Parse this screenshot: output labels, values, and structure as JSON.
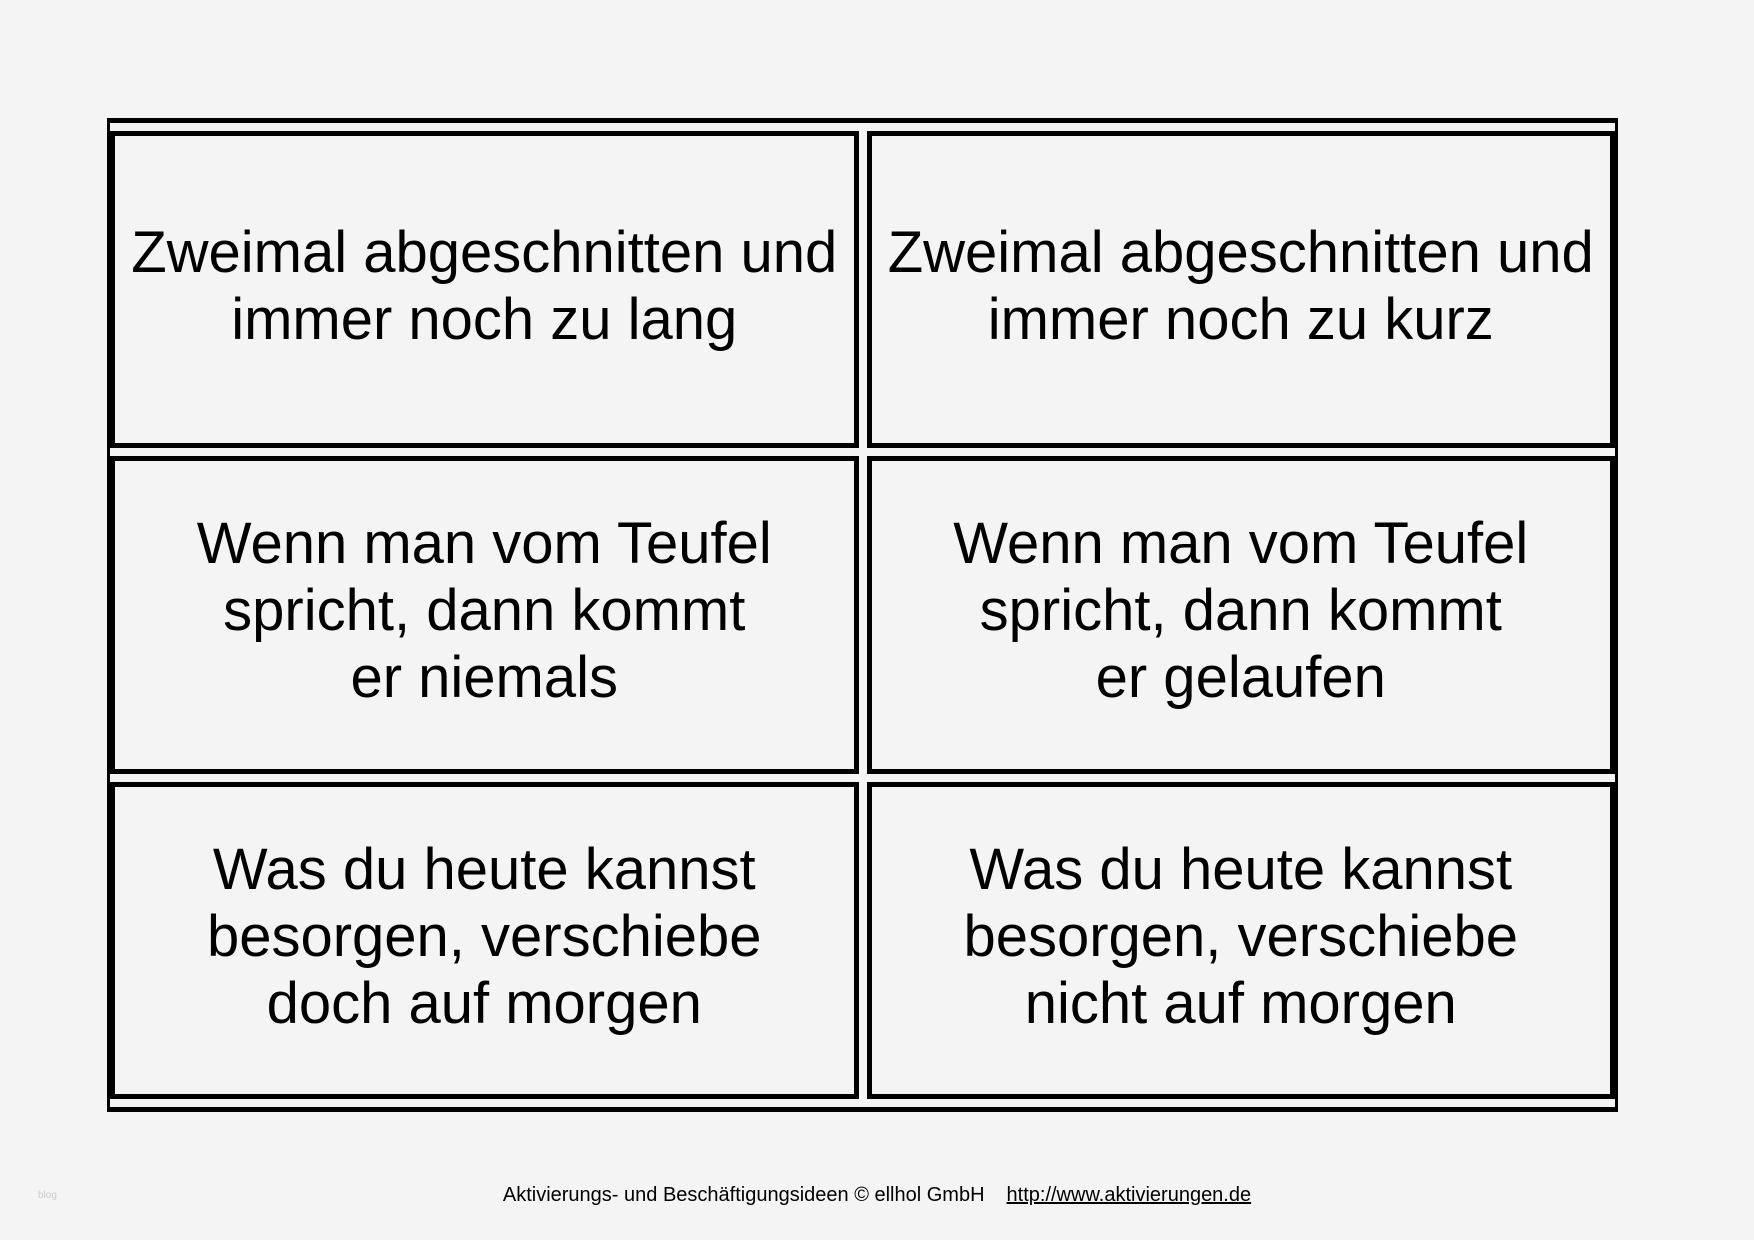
{
  "cards": [
    {
      "text": "Zweimal abgeschnitten und\nimmer noch zu lang"
    },
    {
      "text": "Zweimal abgeschnitten und\nimmer noch zu kurz"
    },
    {
      "text": "Wenn man vom Teufel\nspricht, dann kommt\ner niemals"
    },
    {
      "text": "Wenn man vom Teufel\nspricht, dann kommt\ner gelaufen"
    },
    {
      "text": "Was du heute kannst\nbesorgen, verschiebe\ndoch auf morgen"
    },
    {
      "text": "Was du heute kannst\nbesorgen, verschiebe\nnicht auf morgen"
    }
  ],
  "footer": {
    "copyright": "Aktivierungs- und Beschäftigungsideen © ellhol GmbH",
    "link": "http://www.aktivierungen.de"
  },
  "watermark": "blog"
}
